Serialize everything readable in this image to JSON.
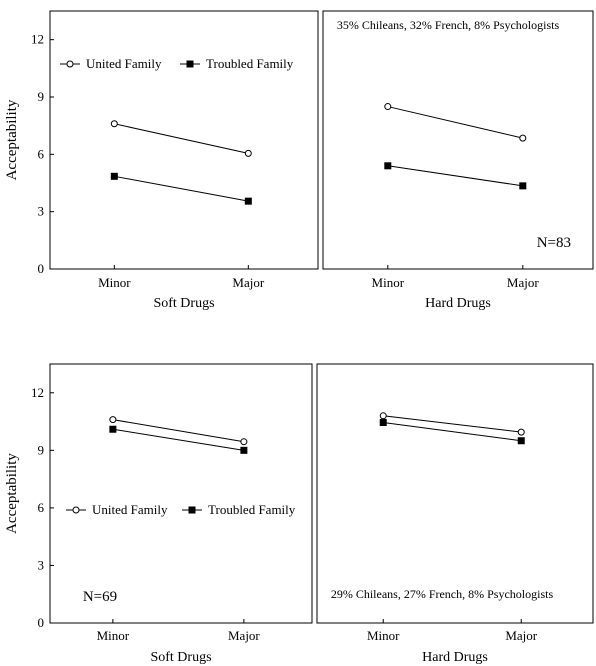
{
  "chart_data": [
    {
      "type": "line",
      "ylabel": "Acceptability",
      "ylim": [
        0,
        13.5
      ],
      "yticks": [
        0,
        3,
        6,
        9,
        12
      ],
      "categories": [
        "Minor",
        "Major"
      ],
      "legend": {
        "placement": "top-left",
        "entries": [
          "United Family",
          "Troubled Family"
        ]
      },
      "annotations": [
        "35% Chileans, 32% French, 8% Psychologists",
        "N=83"
      ],
      "panels": [
        {
          "xlabel": "Soft Drugs",
          "series": [
            {
              "name": "United Family",
              "marker": "open-circle",
              "values": [
                7.6,
                6.05
              ]
            },
            {
              "name": "Troubled Family",
              "marker": "filled-square",
              "values": [
                4.85,
                3.55
              ]
            }
          ]
        },
        {
          "xlabel": "Hard Drugs",
          "series": [
            {
              "name": "United Family",
              "marker": "open-circle",
              "values": [
                8.5,
                6.85
              ]
            },
            {
              "name": "Troubled Family",
              "marker": "filled-square",
              "values": [
                5.4,
                4.35
              ]
            }
          ]
        }
      ]
    },
    {
      "type": "line",
      "ylabel": "Acceptability",
      "ylim": [
        0,
        13.5
      ],
      "yticks": [
        0,
        3,
        6,
        9,
        12
      ],
      "categories": [
        "Minor",
        "Major"
      ],
      "legend": {
        "placement": "middle-left",
        "entries": [
          "United Family",
          "Troubled Family"
        ]
      },
      "annotations": [
        "N=69",
        "29% Chileans, 27% French, 8% Psychologists"
      ],
      "panels": [
        {
          "xlabel": "Soft Drugs",
          "series": [
            {
              "name": "United Family",
              "marker": "open-circle",
              "values": [
                10.6,
                9.45
              ]
            },
            {
              "name": "Troubled Family",
              "marker": "filled-square",
              "values": [
                10.1,
                9.0
              ]
            }
          ]
        },
        {
          "xlabel": "Hard Drugs",
          "series": [
            {
              "name": "United Family",
              "marker": "open-circle",
              "values": [
                10.8,
                9.95
              ]
            },
            {
              "name": "Troubled Family",
              "marker": "filled-square",
              "values": [
                10.45,
                9.5
              ]
            }
          ]
        }
      ]
    }
  ]
}
